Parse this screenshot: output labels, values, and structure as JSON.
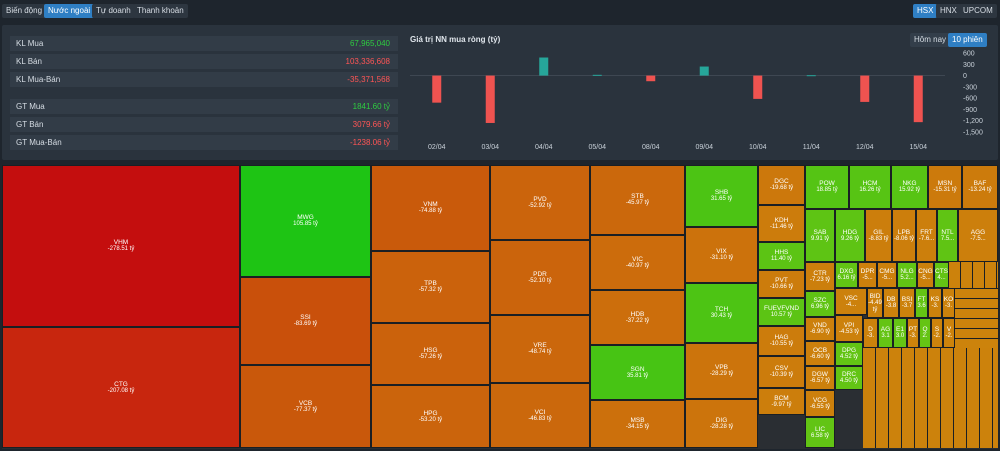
{
  "tabs": [
    "Biến động",
    "Nước ngoài",
    "Tự doanh",
    "Thanh khoản"
  ],
  "exchanges": [
    "HSX",
    "HNX",
    "UPCOM"
  ],
  "stats": [
    {
      "label": "KL Mua",
      "value": "67,965,040",
      "color": "green"
    },
    {
      "label": "KL Bán",
      "value": "103,336,608",
      "color": "red"
    },
    {
      "label": "KL Mua-Bán",
      "value": "-35,371,568",
      "color": "red"
    },
    {
      "label": "GT Mua",
      "value": "1841.60 tỷ",
      "color": "green"
    },
    {
      "label": "GT Bán",
      "value": "3079.66 tỷ",
      "color": "red"
    },
    {
      "label": "GT Mua-Bán",
      "value": "-1238.06 tỷ",
      "color": "red"
    }
  ],
  "chart_title": "Giá trị NN mua ròng (tỷ)",
  "range_buttons": [
    "Hôm nay",
    "10 phiên"
  ],
  "chart_data": {
    "type": "bar",
    "categories": [
      "02/04",
      "03/04",
      "04/04",
      "05/04",
      "08/04",
      "09/04",
      "10/04",
      "11/04",
      "12/04",
      "15/04"
    ],
    "values": [
      -720,
      -1260,
      480,
      20,
      -150,
      240,
      -620,
      10,
      -700,
      -1238
    ],
    "ylim": [
      -1500,
      600
    ],
    "yticks": [
      600,
      300,
      0,
      -300,
      -600,
      -900,
      -1200,
      -1500
    ],
    "ytick_labels": [
      "600",
      "300",
      "0",
      "-300",
      "-600",
      "-900",
      "-1,200",
      "-1,500"
    ],
    "colors": {
      "positive": "#26a69a",
      "negative": "#ef5350"
    }
  },
  "treemap": [
    {
      "s": "VHM",
      "v": "-278.51 tỷ",
      "c": "#c40e0e"
    },
    {
      "s": "CTG",
      "v": "-207.08 tỷ",
      "c": "#c8260e"
    },
    {
      "s": "MWG",
      "v": "105.85 tỷ",
      "c": "#1ec414"
    },
    {
      "s": "SSI",
      "v": "-83.69 tỷ",
      "c": "#c9500b"
    },
    {
      "s": "VCB",
      "v": "-77.37 tỷ",
      "c": "#c9580b"
    },
    {
      "s": "VNM",
      "v": "-74.88 tỷ",
      "c": "#c95a0b"
    },
    {
      "s": "TPB",
      "v": "-57.32 tỷ",
      "c": "#cb620c"
    },
    {
      "s": "HSG",
      "v": "-57.26 tỷ",
      "c": "#cb620c"
    },
    {
      "s": "HPG",
      "v": "-53.20 tỷ",
      "c": "#cb640c"
    },
    {
      "s": "PVD",
      "v": "-52.92 tỷ",
      "c": "#cb640c"
    },
    {
      "s": "PDR",
      "v": "-52.10 tỷ",
      "c": "#cb640c"
    },
    {
      "s": "VRE",
      "v": "-48.74 tỷ",
      "c": "#cb670c"
    },
    {
      "s": "VCI",
      "v": "-46.83 tỷ",
      "c": "#cb680c"
    },
    {
      "s": "STB",
      "v": "-45.97 tỷ",
      "c": "#cb680c"
    },
    {
      "s": "VIC",
      "v": "-40.97 tỷ",
      "c": "#cc6c0c"
    },
    {
      "s": "HDB",
      "v": "-37.22 tỷ",
      "c": "#cc6e0c"
    },
    {
      "s": "SGN",
      "v": "35.81 tỷ",
      "c": "#47c414"
    },
    {
      "s": "MSB",
      "v": "-34.15 tỷ",
      "c": "#cc700c"
    },
    {
      "s": "SHB",
      "v": "31.65 tỷ",
      "c": "#4cc414"
    },
    {
      "s": "TCH",
      "v": "30.43 tỷ",
      "c": "#4dc414"
    },
    {
      "s": "VIX",
      "v": "-31.10 tỷ",
      "c": "#cc720c"
    },
    {
      "s": "VPB",
      "v": "-28.29 tỷ",
      "c": "#cc740c"
    },
    {
      "s": "DIG",
      "v": "-28.28 tỷ",
      "c": "#cc740c"
    },
    {
      "s": "DGC",
      "v": "-19.68 tỷ",
      "c": "#cc780c"
    },
    {
      "s": "KDH",
      "v": "-11.46 tỷ",
      "c": "#cc7c0c"
    },
    {
      "s": "HHS",
      "v": "11.40 tỷ",
      "c": "#5cc414"
    },
    {
      "s": "PVT",
      "v": "-10.66 tỷ",
      "c": "#cc7c0c"
    },
    {
      "s": "FUEVFVND",
      "v": "10.57 tỷ",
      "c": "#5cc414"
    },
    {
      "s": "HAG",
      "v": "-10.55 tỷ",
      "c": "#cc7c0c"
    },
    {
      "s": "CSV",
      "v": "-10.39 tỷ",
      "c": "#cc7c0c"
    },
    {
      "s": "BCM",
      "v": "-9.97 tỷ",
      "c": "#cc7e0c"
    },
    {
      "s": "POW",
      "v": "18.85 tỷ",
      "c": "#55c414"
    },
    {
      "s": "HCM",
      "v": "16.26 tỷ",
      "c": "#57c414"
    },
    {
      "s": "NKG",
      "v": "15.92 tỷ",
      "c": "#57c414"
    },
    {
      "s": "MSN",
      "v": "-15.31 tỷ",
      "c": "#cc7a0c"
    },
    {
      "s": "BAF",
      "v": "-13.24 tỷ",
      "c": "#cc7b0c"
    },
    {
      "s": "SAB",
      "v": "9.91 tỷ",
      "c": "#5ec414"
    },
    {
      "s": "HDG",
      "v": "9.26 tỷ",
      "c": "#5ec414"
    },
    {
      "s": "GIL",
      "v": "-8.83 tỷ",
      "c": "#cc7e0c"
    },
    {
      "s": "LPB",
      "v": "-8.06 tỷ",
      "c": "#cc7e0c"
    },
    {
      "s": "FRT",
      "v": "-7.6...",
      "c": "#cc7f0c"
    },
    {
      "s": "NTL",
      "v": "7.5...",
      "c": "#60c414"
    },
    {
      "s": "AGG",
      "v": "-7.5...",
      "c": "#cc7f0c"
    },
    {
      "s": "CTR",
      "v": "-7.23 tỷ",
      "c": "#cc7f0c"
    },
    {
      "s": "SZC",
      "v": "6.96 tỷ",
      "c": "#60c414"
    },
    {
      "s": "VND",
      "v": "-6.90 tỷ",
      "c": "#cc800c"
    },
    {
      "s": "OCB",
      "v": "-6.60 tỷ",
      "c": "#cc800c"
    },
    {
      "s": "DGW",
      "v": "-6.57 tỷ",
      "c": "#cc800c"
    },
    {
      "s": "VCG",
      "v": "-6.55 tỷ",
      "c": "#cc800c"
    },
    {
      "s": "LIC",
      "v": "6.58 tỷ",
      "c": "#62c414"
    },
    {
      "s": "DXG",
      "v": "6.16 tỷ",
      "c": "#62c414"
    },
    {
      "s": "DPR",
      "v": "-5...",
      "c": "#cc800c"
    },
    {
      "s": "CMG",
      "v": "-5...",
      "c": "#cc800c"
    },
    {
      "s": "NLG",
      "v": "5.2...",
      "c": "#62c414"
    },
    {
      "s": "CNG",
      "v": "-5...",
      "c": "#cc800c"
    },
    {
      "s": "CTS",
      "v": "4...",
      "c": "#63c414"
    },
    {
      "s": "VSC",
      "v": "-4...",
      "c": "#cc810c"
    },
    {
      "s": "VPI",
      "v": "-4.53 tỷ",
      "c": "#cc810c"
    },
    {
      "s": "DPG",
      "v": "4.52 tỷ",
      "c": "#63c414"
    },
    {
      "s": "DRC",
      "v": "4.50 tỷ",
      "c": "#63c414"
    },
    {
      "s": "BID",
      "v": "-4.49 tỷ",
      "c": "#cc810c"
    },
    {
      "s": "DB",
      "v": "-3.8",
      "c": "#cc820c"
    },
    {
      "s": "BSI",
      "v": "-3.7",
      "c": "#cc820c"
    },
    {
      "s": "FT",
      "v": "3.6",
      "c": "#64c414"
    },
    {
      "s": "KS",
      "v": "-3.",
      "c": "#cc820c"
    },
    {
      "s": "KO",
      "v": "-3.",
      "c": "#cc820c"
    },
    {
      "s": "D",
      "v": "-3.",
      "c": "#cc820c"
    },
    {
      "s": "AG",
      "v": "3.1",
      "c": "#65c414"
    },
    {
      "s": "E1",
      "v": "3.0",
      "c": "#65c414"
    },
    {
      "s": "PT",
      "v": "-3.",
      "c": "#cc830c"
    },
    {
      "s": "Q",
      "v": "2.",
      "c": "#65c414"
    },
    {
      "s": "S",
      "v": "-2.",
      "c": "#cc830c"
    },
    {
      "s": "V",
      "v": "-2.",
      "c": "#cc830c"
    },
    {
      "s": "B",
      "v": "-2.",
      "c": "#cc830c"
    },
    {
      "s": "H",
      "v": "-2.",
      "c": "#cc830c"
    }
  ]
}
